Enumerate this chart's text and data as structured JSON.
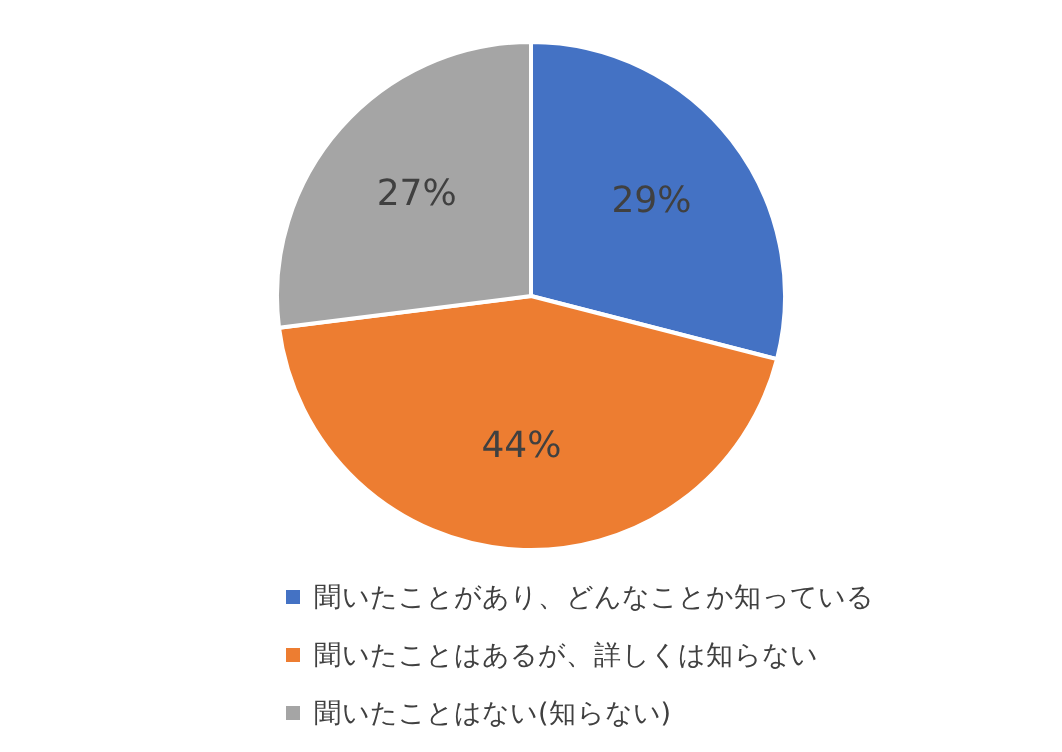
{
  "chart_data": {
    "type": "pie",
    "categories": [
      "聞いたことがあり、どんなことか知っている",
      "聞いたことはあるが、詳しくは知らない",
      "聞いたことはない(知らない)"
    ],
    "values": [
      29,
      44,
      27
    ],
    "colors": [
      "#4472c4",
      "#ed7d31",
      "#a5a5a5"
    ],
    "value_labels": [
      "29%",
      "44%",
      "27%"
    ],
    "legend": "bottom"
  }
}
